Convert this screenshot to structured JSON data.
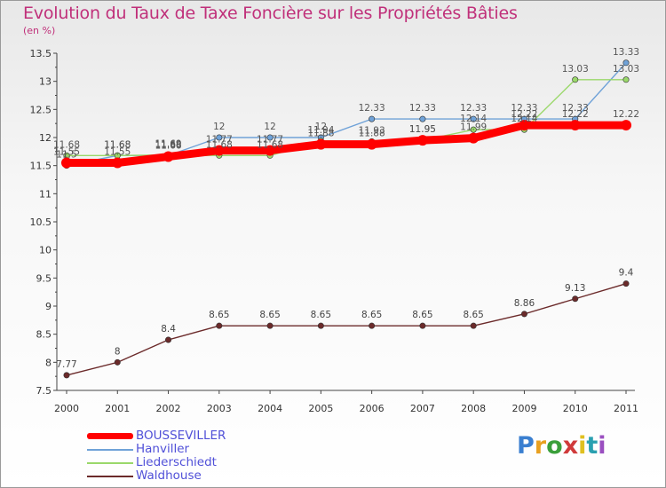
{
  "title": "Evolution du Taux de Taxe Foncière sur les Propriétés Bâties",
  "subtitle": "(en %)",
  "logo": {
    "text": "Proxiti",
    "colors": [
      "#3a7fd0",
      "#e8a020",
      "#3a9f3a",
      "#d03a3a",
      "#e0c020",
      "#2aa0b0",
      "#9a4fc0"
    ]
  },
  "chart_data": {
    "type": "line",
    "x": [
      2000,
      2001,
      2002,
      2003,
      2004,
      2005,
      2006,
      2007,
      2008,
      2009,
      2010,
      2011
    ],
    "categories": [
      "2000",
      "2001",
      "2002",
      "2003",
      "2004",
      "2005",
      "2006",
      "2007",
      "2008",
      "2009",
      "2010",
      "2011"
    ],
    "ylim": [
      7.5,
      13.5
    ],
    "yticks": [
      7.5,
      8,
      8.5,
      9,
      9.5,
      10,
      10.5,
      11,
      11.5,
      12,
      12.5,
      13,
      13.5
    ],
    "ytick_labels": [
      "7.5",
      "8",
      "8.5",
      "9",
      "9.5",
      "10",
      "10.5",
      "11",
      "11.5",
      "12",
      "12.5",
      "13",
      "13.5"
    ],
    "grid": false,
    "legend_position": "bottom-left",
    "series": [
      {
        "name": "BOUSSEVILLER",
        "color": "#ff0000",
        "values": [
          11.55,
          11.55,
          11.66,
          11.77,
          11.77,
          11.88,
          11.88,
          11.95,
          11.99,
          12.22,
          12.22,
          12.22
        ],
        "labels": [
          "11.55",
          "11.55",
          "11.66",
          "11.77",
          "11.77",
          "11.88",
          "11.88",
          "11.95",
          "11.99",
          "12.22",
          "12.22",
          "12.22"
        ]
      },
      {
        "name": "Hanviller",
        "color": "#6fa2d8",
        "values": [
          11.5,
          11.68,
          11.68,
          12,
          12,
          12,
          12.33,
          12.33,
          12.33,
          12.33,
          12.33,
          13.33
        ],
        "labels": [
          "11.5",
          "11.68",
          "11.68",
          "12",
          "12",
          "12",
          "12.33",
          "12.33",
          "12.33",
          "12.33",
          "12.33",
          "13.33"
        ]
      },
      {
        "name": "Liederschiedt",
        "color": "#9ad86a",
        "values": [
          11.68,
          11.68,
          11.69,
          11.68,
          11.68,
          11.94,
          11.93,
          11.95,
          12.14,
          12.14,
          13.03,
          13.03
        ],
        "labels": [
          "11.68",
          "11.68",
          "11.69",
          "11.68",
          "11.68",
          "11.94",
          "11.93",
          "11.95",
          "12.14",
          "12.14",
          "13.03",
          "13.03"
        ]
      },
      {
        "name": "Waldhouse",
        "color": "#6b2a2a",
        "values": [
          7.77,
          8,
          8.4,
          8.65,
          8.65,
          8.65,
          8.65,
          8.65,
          8.65,
          8.86,
          9.13,
          9.4
        ],
        "labels": [
          "7.77",
          "8",
          "8.4",
          "8.65",
          "8.65",
          "8.65",
          "8.65",
          "8.65",
          "8.65",
          "8.86",
          "9.13",
          "9.4"
        ]
      }
    ]
  },
  "legend": {
    "items": [
      {
        "label": "BOUSSEVILLER",
        "color": "#ff0000",
        "weight": 7
      },
      {
        "label": "Hanviller",
        "color": "#6fa2d8",
        "weight": 2
      },
      {
        "label": "Liederschiedt",
        "color": "#9ad86a",
        "weight": 2
      },
      {
        "label": "Waldhouse",
        "color": "#6b2a2a",
        "weight": 2
      }
    ],
    "text_color": "#5050d8"
  }
}
